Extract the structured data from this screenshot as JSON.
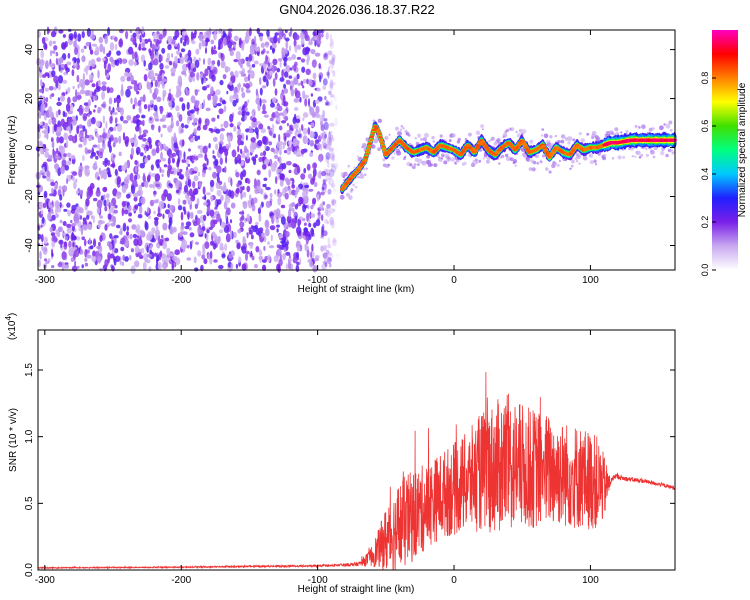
{
  "chart_data": [
    {
      "type": "heatmap",
      "title": "GN04.2026.036.18.37.R22",
      "xlabel": "Height of straight line (km)",
      "ylabel": "Frequency (Hz)",
      "xlim": [
        -305,
        162
      ],
      "ylim": [
        -50,
        48
      ],
      "xticks": [
        -300,
        -200,
        -100,
        0,
        100
      ],
      "xtick_labels": [
        "-300",
        "-200",
        "-100",
        "0",
        "100"
      ],
      "yticks": [
        -40,
        -20,
        0,
        20,
        40
      ],
      "ytick_labels": [
        "-40",
        "-20",
        "0",
        "20",
        "40"
      ],
      "colorbar": {
        "label": "Normalized spectral amplitude",
        "range": [
          0,
          1
        ],
        "ticks": [
          0.0,
          0.2,
          0.4,
          0.6,
          0.8
        ],
        "tick_labels": [
          "0.0",
          "0.2",
          "0.4",
          "0.6",
          "0.8"
        ],
        "colormap": [
          "#ffffff",
          "#c8a8f0",
          "#7a20e8",
          "#2020ff",
          "#00c8ff",
          "#00ff80",
          "#40e000",
          "#ffff00",
          "#ff8000",
          "#ff0000",
          "#ff00c0"
        ]
      },
      "regions": [
        {
          "name": "noise",
          "x_range": [
            -305,
            -85
          ],
          "y_range": [
            -50,
            48
          ],
          "level": 0.25
        },
        {
          "name": "ridge",
          "points": [
            [
              -82,
              -17
            ],
            [
              -75,
              -12
            ],
            [
              -70,
              -9
            ],
            [
              -65,
              -5
            ],
            [
              -60,
              5
            ],
            [
              -58,
              9
            ],
            [
              -55,
              6
            ],
            [
              -50,
              -3
            ],
            [
              -45,
              0
            ],
            [
              -40,
              3
            ],
            [
              -35,
              0
            ],
            [
              -30,
              -2
            ],
            [
              -25,
              -1
            ],
            [
              -20,
              0
            ],
            [
              -15,
              -2
            ],
            [
              -10,
              1
            ],
            [
              -5,
              0
            ],
            [
              0,
              -1
            ],
            [
              5,
              -3
            ],
            [
              10,
              1
            ],
            [
              15,
              -2
            ],
            [
              20,
              3
            ],
            [
              25,
              -1
            ],
            [
              30,
              -3
            ],
            [
              35,
              0
            ],
            [
              40,
              2
            ],
            [
              45,
              -1
            ],
            [
              50,
              3
            ],
            [
              55,
              -2
            ],
            [
              60,
              -1
            ],
            [
              65,
              1
            ],
            [
              70,
              -4
            ],
            [
              75,
              0
            ],
            [
              80,
              -2
            ],
            [
              85,
              -3
            ],
            [
              90,
              1
            ],
            [
              95,
              -1
            ],
            [
              100,
              0
            ],
            [
              105,
              0
            ],
            [
              110,
              1
            ],
            [
              115,
              2
            ],
            [
              120,
              2
            ],
            [
              130,
              3
            ],
            [
              140,
              3
            ],
            [
              150,
              3
            ],
            [
              162,
              3
            ]
          ],
          "level": 0.6
        }
      ]
    },
    {
      "type": "line",
      "xlabel": "Height of straight line (km)",
      "ylabel": "SNR (10 * v/v)",
      "multiplier_label": "(x10",
      "multiplier_exp": "4",
      "multiplier_close": ")",
      "xlim": [
        -305,
        162
      ],
      "ylim": [
        0,
        18000
      ],
      "xticks": [
        -300,
        -200,
        -100,
        0,
        100
      ],
      "xtick_labels": [
        "-300",
        "-200",
        "-100",
        "0",
        "100"
      ],
      "yticks": [
        0,
        5000,
        10000,
        15000
      ],
      "ytick_labels": [
        "0.0",
        "0.5",
        "1.0",
        "1.5"
      ],
      "color": "#ee3333",
      "envelope": {
        "x": [
          -305,
          -200,
          -150,
          -100,
          -90,
          -70,
          -62,
          -55,
          -50,
          -40,
          -30,
          -20,
          -10,
          0,
          10,
          20,
          30,
          40,
          50,
          60,
          70,
          80,
          90,
          100,
          105,
          110,
          115,
          118,
          125,
          140,
          150,
          162
        ],
        "base": [
          150,
          200,
          250,
          280,
          300,
          400,
          700,
          1200,
          1500,
          2200,
          3000,
          3800,
          4600,
          5000,
          5500,
          6000,
          6200,
          6400,
          6300,
          6200,
          6200,
          6000,
          5800,
          5600,
          5500,
          5400,
          6600,
          7000,
          6800,
          6600,
          6400,
          6100
        ],
        "amplitude": [
          80,
          80,
          120,
          150,
          200,
          300,
          1200,
          3000,
          5000,
          7000,
          7000,
          6500,
          6500,
          7000,
          7500,
          9000,
          10000,
          10500,
          9500,
          9000,
          8500,
          8000,
          8000,
          7500,
          7000,
          5000,
          400,
          400,
          350,
          300,
          300,
          300
        ]
      }
    }
  ]
}
